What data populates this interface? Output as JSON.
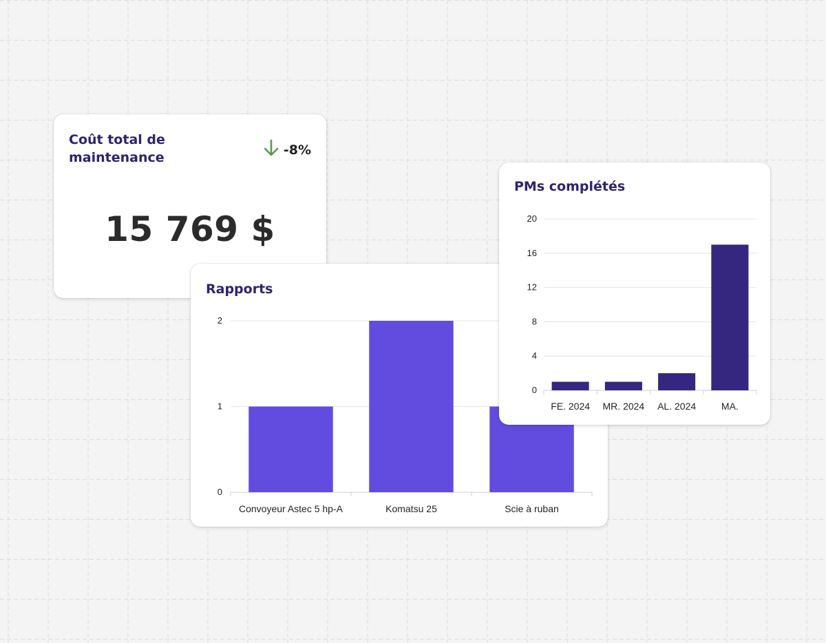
{
  "colors": {
    "title": "#30226f",
    "bar_reports": "#624ce0",
    "bar_pm": "#352780",
    "trend_down": "#5a9a4a"
  },
  "cost_card": {
    "title": "Coût total de maintenance",
    "trend_icon": "arrow-down-icon",
    "trend_value": "-8%",
    "value": "15 769 $"
  },
  "reports_card": {
    "title": "Rapports"
  },
  "pm_card": {
    "title": "PMs complétés"
  },
  "chart_data": [
    {
      "type": "bar",
      "title": "Rapports",
      "categories": [
        "Convoyeur Astec 5 hp-A",
        "Komatsu 25",
        "Scie à ruban"
      ],
      "values": [
        1,
        2,
        1
      ],
      "ylim": [
        0,
        2
      ],
      "yticks": [
        "0",
        "1",
        "2"
      ],
      "grid": true
    },
    {
      "type": "bar",
      "title": "PMs complétés",
      "categories": [
        "FE. 2024",
        "MR. 2024",
        "AL. 2024",
        "MA."
      ],
      "values": [
        1,
        1,
        2,
        17
      ],
      "ylim": [
        0,
        20
      ],
      "yticks": [
        "0",
        "4",
        "8",
        "12",
        "16",
        "20"
      ],
      "grid": true
    }
  ]
}
